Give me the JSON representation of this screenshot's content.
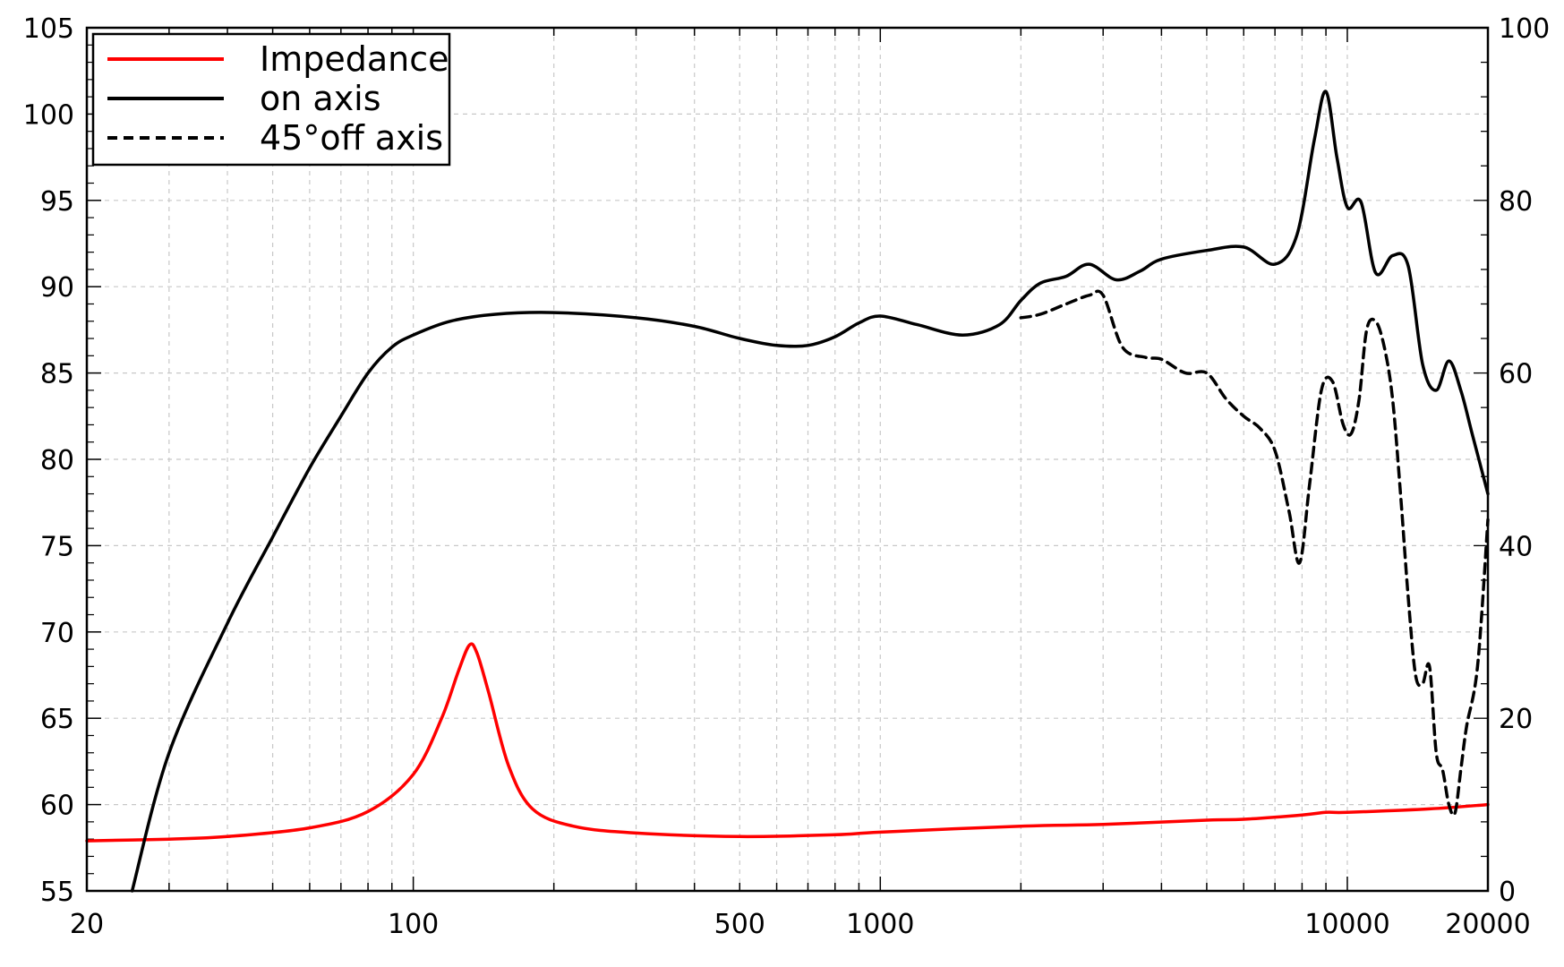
{
  "chart_data": {
    "type": "line",
    "title": "",
    "xlabel": "",
    "ylabel": "",
    "y2label": "",
    "x_scale": "log",
    "xlim": [
      20,
      20000
    ],
    "ylim": [
      55,
      105
    ],
    "y2lim": [
      0,
      100
    ],
    "x_tick_labels": [
      "20",
      "100",
      "500",
      "1000",
      "10000",
      "20000"
    ],
    "x_tick_values": [
      20,
      100,
      500,
      1000,
      10000,
      20000
    ],
    "y_ticks": [
      55,
      60,
      65,
      70,
      75,
      80,
      85,
      90,
      95,
      100,
      105
    ],
    "y2_ticks": [
      0,
      20,
      40,
      60,
      80,
      100
    ],
    "grid": true,
    "legend_position": "top-left",
    "series": [
      {
        "name": "Impedance",
        "axis": "right",
        "color": "#ff0000",
        "dash": "solid",
        "x": [
          20,
          30,
          40,
          60,
          80,
          100,
          115,
          125,
          132,
          137,
          145,
          160,
          180,
          220,
          300,
          500,
          800,
          1000,
          2000,
          3000,
          5000,
          6000,
          8000,
          9000,
          10000,
          15000,
          20000
        ],
        "y": [
          5.8,
          6.0,
          6.3,
          7.3,
          9.2,
          13.5,
          20.0,
          25.5,
          28.5,
          27.5,
          23.0,
          14.5,
          9.5,
          7.5,
          6.7,
          6.3,
          6.5,
          6.8,
          7.5,
          7.7,
          8.2,
          8.3,
          8.8,
          9.1,
          9.1,
          9.5,
          10.0
        ]
      },
      {
        "name": "on axis",
        "axis": "left",
        "color": "#000000",
        "dash": "solid",
        "x": [
          25,
          30,
          40,
          50,
          60,
          70,
          80,
          90,
          100,
          120,
          150,
          200,
          300,
          400,
          500,
          600,
          700,
          800,
          900,
          1000,
          1200,
          1500,
          1800,
          2000,
          2200,
          2500,
          2800,
          3200,
          3600,
          4000,
          5000,
          6000,
          7000,
          7800,
          8500,
          9000,
          9500,
          10000,
          10700,
          11500,
          12500,
          13500,
          14500,
          15500,
          16500,
          17500,
          18500,
          20000
        ],
        "y": [
          55.0,
          63.0,
          70.5,
          75.5,
          79.5,
          82.5,
          85.0,
          86.5,
          87.2,
          88.0,
          88.4,
          88.5,
          88.2,
          87.7,
          87.0,
          86.6,
          86.6,
          87.1,
          87.9,
          88.3,
          87.8,
          87.2,
          87.8,
          89.2,
          90.2,
          90.6,
          91.3,
          90.4,
          90.9,
          91.6,
          92.1,
          92.3,
          91.3,
          93.0,
          98.5,
          101.3,
          97.5,
          94.6,
          94.9,
          90.8,
          91.8,
          91.2,
          85.5,
          84.0,
          85.7,
          84.0,
          81.5,
          78.0
        ]
      },
      {
        "name": "45°off axis",
        "axis": "left",
        "color": "#000000",
        "dash": "dashed",
        "x": [
          2000,
          2200,
          2500,
          2800,
          3000,
          3300,
          3700,
          4000,
          4500,
          5000,
          5500,
          6000,
          6500,
          7000,
          7500,
          7900,
          8300,
          8800,
          9300,
          9800,
          10200,
          10600,
          11000,
          11500,
          12000,
          12500,
          13000,
          13500,
          14000,
          14500,
          15000,
          15500,
          16000,
          16500,
          17000,
          17500,
          18000,
          19000,
          20000
        ],
        "y": [
          88.2,
          88.4,
          89.0,
          89.5,
          89.5,
          86.5,
          85.9,
          85.8,
          85.0,
          85.0,
          83.5,
          82.5,
          81.8,
          80.5,
          77.0,
          74.0,
          78.5,
          84.0,
          84.5,
          82.0,
          81.5,
          83.5,
          87.5,
          88.0,
          86.5,
          83.5,
          78.0,
          72.0,
          67.5,
          67.0,
          68.0,
          63.0,
          62.0,
          60.0,
          59.5,
          62.0,
          64.5,
          68.0,
          76.5
        ]
      }
    ]
  }
}
